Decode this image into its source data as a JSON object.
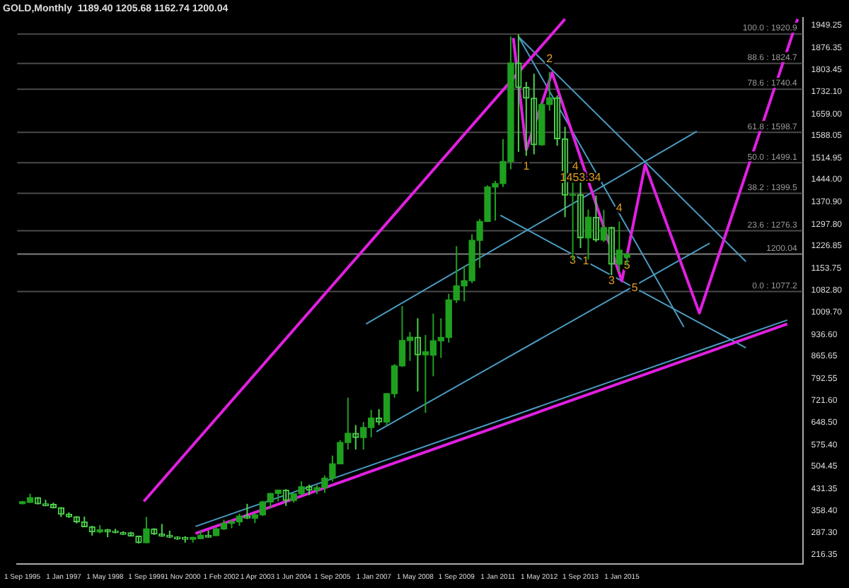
{
  "chart_data": {
    "type": "candlestick",
    "title": "GOLD,Monthly  1189.40 1205.68 1162.74 1200.04",
    "colors": [
      "#1fa01f",
      "#1fa01f",
      "#4cd04c",
      "#4cd04c",
      "#4cd04c",
      "#4cd04c",
      "#4cd04c",
      "#4cd04c",
      "#4cd04c",
      "#4cd04c",
      "#1fa01f",
      "#4cd04c",
      "#4cd04c",
      "#4cd04c",
      "#4cd04c",
      "#4cd04c",
      "#1fa01f",
      "#4cd04c",
      "#4cd04c",
      "#4cd04c",
      "#4cd04c",
      "#4cd04c",
      "#1fa01f",
      "#1fa01f",
      "#4cd04c",
      "#1fa01f",
      "#1fa01f",
      "#1fa01f",
      "#1fa01f",
      "#4cd04c",
      "#1fa01f",
      "#1fa01f",
      "#1fa01f",
      "#1fa01f",
      "#4cd04c",
      "#1fa01f",
      "#1fa01f",
      "#4cd04c",
      "#1fa01f",
      "#1fa01f",
      "#1fa01f",
      "#1fa01f",
      "#1fa01f",
      "#4cd04c",
      "#1fa01f",
      "#1fa01f",
      "#4cd04c",
      "#1fa01f",
      "#1fa01f",
      "#1fa01f",
      "#1fa01f",
      "#4cd04c",
      "#1fa01f",
      "#1fa01f",
      "#1fa01f",
      "#1fa01f",
      "#1fa01f",
      "#1fa01f",
      "#1fa01f",
      "#1fa01f",
      "#1fa01f",
      "#1fa01f",
      "#1fa01f",
      "#1fa01f",
      "#4cd04c",
      "#4cd04c",
      "#4cd04c",
      "#1fa01f",
      "#1fa01f",
      "#4cd04c",
      "#4cd04c",
      "#1fa01f",
      "#4cd04c",
      "#1fa01f",
      "#4cd04c",
      "#1fa01f",
      "#4cd04c",
      "#1fa01f",
      "#1fa01f"
    ],
    "x": [
      "1995-09",
      "1995-12",
      "1996-03",
      "1996-06",
      "1996-09",
      "1996-12",
      "1997-03",
      "1997-06",
      "1997-09",
      "1997-12",
      "1998-03",
      "1998-06",
      "1998-09",
      "1998-12",
      "1999-03",
      "1999-06",
      "1999-09",
      "1999-12",
      "2000-03",
      "2000-06",
      "2000-09",
      "2000-12",
      "2001-03",
      "2001-06",
      "2001-09",
      "2001-12",
      "2002-03",
      "2002-06",
      "2002-09",
      "2002-12",
      "2003-03",
      "2003-06",
      "2003-09",
      "2003-12",
      "2004-03",
      "2004-06",
      "2004-09",
      "2004-12",
      "2005-03",
      "2005-06",
      "2005-09",
      "2005-12",
      "2006-03",
      "2006-06",
      "2006-09",
      "2006-12",
      "2007-03",
      "2007-06",
      "2007-09",
      "2007-12",
      "2008-03",
      "2008-06",
      "2008-09",
      "2008-12",
      "2009-03",
      "2009-06",
      "2009-09",
      "2009-12",
      "2010-03",
      "2010-06",
      "2010-09",
      "2010-12",
      "2011-03",
      "2011-06",
      "2011-09",
      "2011-12",
      "2012-03",
      "2012-06",
      "2012-09",
      "2012-12",
      "2013-03",
      "2013-06",
      "2013-09",
      "2013-12",
      "2014-03",
      "2014-06",
      "2014-09",
      "2014-12",
      "2015-03"
    ],
    "ohlc": [
      [
        383,
        392,
        380,
        389
      ],
      [
        387,
        415,
        385,
        402
      ],
      [
        402,
        404,
        380,
        382
      ],
      [
        382,
        395,
        374,
        376
      ],
      [
        380,
        386,
        367,
        369
      ],
      [
        369,
        371,
        339,
        348
      ],
      [
        348,
        354,
        336,
        340
      ],
      [
        340,
        342,
        318,
        323
      ],
      [
        323,
        340,
        306,
        307
      ],
      [
        307,
        310,
        278,
        290
      ],
      [
        290,
        312,
        285,
        297
      ],
      [
        297,
        300,
        273,
        290
      ],
      [
        293,
        300,
        285,
        288
      ],
      [
        288,
        292,
        280,
        282
      ],
      [
        287,
        290,
        275,
        276
      ],
      [
        276,
        278,
        252,
        255
      ],
      [
        255,
        339,
        253,
        300
      ],
      [
        300,
        302,
        280,
        283
      ],
      [
        283,
        316,
        274,
        276
      ],
      [
        279,
        294,
        270,
        273
      ],
      [
        273,
        276,
        264,
        267
      ],
      [
        272,
        276,
        255,
        266
      ],
      [
        266,
        274,
        255,
        272
      ],
      [
        268,
        295,
        266,
        279
      ],
      [
        279,
        295,
        271,
        273
      ],
      [
        278,
        305,
        276,
        300
      ],
      [
        300,
        330,
        296,
        318
      ],
      [
        318,
        330,
        302,
        323
      ],
      [
        323,
        350,
        310,
        342
      ],
      [
        342,
        382,
        332,
        335
      ],
      [
        335,
        352,
        319,
        346
      ],
      [
        346,
        392,
        342,
        388
      ],
      [
        388,
        417,
        367,
        416
      ],
      [
        416,
        427,
        390,
        427
      ],
      [
        427,
        430,
        375,
        393
      ],
      [
        393,
        415,
        386,
        415
      ],
      [
        415,
        456,
        410,
        438
      ],
      [
        438,
        445,
        411,
        427
      ],
      [
        427,
        443,
        414,
        435
      ],
      [
        435,
        475,
        418,
        466
      ],
      [
        466,
        540,
        456,
        513
      ],
      [
        513,
        590,
        512,
        583
      ],
      [
        583,
        730,
        560,
        613
      ],
      [
        613,
        640,
        560,
        599
      ],
      [
        599,
        650,
        560,
        632
      ],
      [
        632,
        690,
        600,
        663
      ],
      [
        663,
        692,
        640,
        650
      ],
      [
        650,
        745,
        640,
        743
      ],
      [
        743,
        840,
        730,
        834
      ],
      [
        834,
        1030,
        830,
        917
      ],
      [
        917,
        945,
        850,
        928
      ],
      [
        928,
        990,
        750,
        870
      ],
      [
        870,
        935,
        680,
        880
      ],
      [
        869,
        1005,
        800,
        916
      ],
      [
        916,
        990,
        860,
        927
      ],
      [
        927,
        1070,
        910,
        1050
      ],
      [
        1050,
        1226,
        1040,
        1096
      ],
      [
        1096,
        1162,
        1045,
        1113
      ],
      [
        1113,
        1265,
        1105,
        1245
      ],
      [
        1245,
        1315,
        1155,
        1307
      ],
      [
        1307,
        1425,
        1305,
        1420
      ],
      [
        1420,
        1440,
        1310,
        1431
      ],
      [
        1431,
        1577,
        1420,
        1503
      ],
      [
        1503,
        1913,
        1478,
        1826
      ],
      [
        1826,
        1920,
        1535,
        1746
      ],
      [
        1746,
        1764,
        1522,
        1711
      ],
      [
        1711,
        1791,
        1527,
        1558
      ],
      [
        1558,
        1700,
        1555,
        1690
      ],
      [
        1690,
        1796,
        1670,
        1712
      ],
      [
        1712,
        1720,
        1555,
        1578
      ],
      [
        1578,
        1617,
        1321,
        1393
      ],
      [
        1393,
        1434,
        1180,
        1395
      ],
      [
        1395,
        1434,
        1220,
        1253
      ],
      [
        1253,
        1346,
        1182,
        1321
      ],
      [
        1321,
        1392,
        1240,
        1246
      ],
      [
        1246,
        1345,
        1240,
        1287
      ],
      [
        1287,
        1290,
        1131,
        1167
      ],
      [
        1167,
        1307,
        1142,
        1213
      ],
      [
        1189.4,
        1205.68,
        1162.74,
        1200.04
      ]
    ],
    "series": [
      {
        "type": "line",
        "color": "#e020e0",
        "x": [
          "1999-08",
          "2013-03"
        ],
        "values": [
          390,
          1970
        ]
      },
      {
        "type": "line",
        "color": "#e020e0",
        "x": [
          "2001-04",
          "2020-05"
        ],
        "values": [
          285,
          971
        ]
      },
      {
        "type": "line",
        "color": "#e020e0",
        "x": [
          "2011-07",
          "2011-12",
          "2012-10",
          "2015-01",
          "2015-10",
          "2017-07",
          "2020-09"
        ],
        "values": [
          1908,
          1542,
          1794,
          1112,
          1492,
          1007,
          1970
        ]
      },
      {
        "type": "line",
        "color": "#4a9bc0",
        "x": [
          "2011-09",
          "2019-01"
        ],
        "values": [
          1912,
          1176
        ]
      },
      {
        "type": "line",
        "color": "#4a9bc0",
        "x": [
          "2011-09",
          "2017-01"
        ],
        "values": [
          1912,
          961
        ]
      },
      {
        "type": "line",
        "color": "#4a9bc0",
        "x": [
          "2011-02",
          "2019-01"
        ],
        "values": [
          1327,
          893
        ]
      },
      {
        "type": "line",
        "color": "#4a9bc0",
        "x": [
          "2006-10",
          "2017-06"
        ],
        "values": [
          971,
          1602
        ]
      },
      {
        "type": "line",
        "color": "#4a9bc0",
        "x": [
          "2007-02",
          "2017-11"
        ],
        "values": [
          618,
          1236
        ]
      },
      {
        "type": "line",
        "color": "#4a9bc0",
        "x": [
          "2001-04",
          "2020-05"
        ],
        "values": [
          308,
          984
        ]
      }
    ],
    "xlim": [
      "1995-07",
      "2020-11"
    ],
    "xticks": [
      {
        "value": "1995-09",
        "label": "1 Sep 1995"
      },
      {
        "value": "1997-01",
        "label": "1 Jan 1997"
      },
      {
        "value": "1998-05",
        "label": "1 May 1998"
      },
      {
        "value": "1999-09",
        "label": "1 Sep 1999"
      },
      {
        "value": "2000-11",
        "label": "1 Nov 2000"
      },
      {
        "value": "2002-02",
        "label": "1 Feb 2002"
      },
      {
        "value": "2003-04",
        "label": "1 Apr 2003"
      },
      {
        "value": "2004-06",
        "label": "1 Jun 2004"
      },
      {
        "value": "2005-09",
        "label": "1 Sep 2005"
      },
      {
        "value": "2007-01",
        "label": "1 Jan 2007"
      },
      {
        "value": "2008-05",
        "label": "1 May 2008"
      },
      {
        "value": "2009-09",
        "label": "1 Sep 2009"
      },
      {
        "value": "2011-01",
        "label": "1 Jan 2011"
      },
      {
        "value": "2012-05",
        "label": "1 May 2012"
      },
      {
        "value": "2013-09",
        "label": "1 Sep 2013"
      },
      {
        "value": "2015-01",
        "label": "1 Jan 2015"
      }
    ],
    "ylim": [
      185,
      1975
    ],
    "yticks": [
      1949.25,
      1876.35,
      1803.45,
      {
        "value": 1732.1,
        "label": "1732.10"
      },
      {
        "value": 1659,
        "label": "1659.00"
      },
      1588.05,
      1514.95,
      {
        "value": 1444,
        "label": "1444.00"
      },
      {
        "value": 1370.9,
        "label": "1370.90"
      },
      {
        "value": 1297.8,
        "label": "1297.80"
      },
      1226.85,
      1153.75,
      {
        "value": 1082.8,
        "label": "1082.80"
      },
      {
        "value": 1009.7,
        "label": "1009.70"
      },
      {
        "value": 936.6,
        "label": "936.60"
      },
      865.65,
      792.55,
      {
        "value": 721.6,
        "label": "721.60"
      },
      {
        "value": 648.5,
        "label": "648.50"
      },
      {
        "value": 575.4,
        "label": "575.40"
      },
      504.45,
      431.35,
      {
        "value": 358.4,
        "label": "358.40"
      },
      {
        "value": 287.3,
        "label": "287.30"
      },
      216.35
    ],
    "ref_lines": [
      {
        "axis": "y",
        "value": 1920.9,
        "label": "100.0 : 1920.9",
        "color": "#4a4a4a"
      },
      {
        "axis": "y",
        "value": 1824.7,
        "label": "88.6 : 1824.7",
        "color": "#4a4a4a"
      },
      {
        "axis": "y",
        "value": 1740.4,
        "label": "78.6 : 1740.4",
        "color": "#4a4a4a"
      },
      {
        "axis": "y",
        "value": 1598.7,
        "label": "61.8 : 1598.7",
        "color": "#4a4a4a"
      },
      {
        "axis": "y",
        "value": 1499.1,
        "label": "50.0 : 1499.1",
        "color": "#4a4a4a"
      },
      {
        "axis": "y",
        "value": 1399.5,
        "label": "38.2 : 1399.5",
        "color": "#4a4a4a"
      },
      {
        "axis": "y",
        "value": 1276.3,
        "label": "23.6 : 1276.3",
        "color": "#4a4a4a"
      },
      {
        "axis": "y",
        "value": 1077.2,
        "label": "0.0 : 1077.2",
        "color": "#4a4a4a"
      },
      {
        "axis": "y",
        "value": 1200.04,
        "label": "1200.04",
        "color": "#808080"
      }
    ],
    "annotations": [
      {
        "text": "1",
        "x": "2011-12",
        "y": 1487
      },
      {
        "text": "2",
        "x": "2012-09",
        "y": 1839
      },
      {
        "text": "3",
        "x": "2013-06",
        "y": 1180
      },
      {
        "text": "4",
        "x": "2013-07",
        "y": 1487
      },
      {
        "text": "5",
        "x": "2015-06",
        "y": 1089
      },
      {
        "text": "1",
        "x": "2013-11",
        "y": 1176
      },
      {
        "text": "3",
        "x": "2014-09",
        "y": 1112
      },
      {
        "text": "4",
        "x": "2014-12",
        "y": 1350
      },
      {
        "text": "5",
        "x": "2015-03",
        "y": 1162.74
      },
      {
        "text": "1453.34",
        "x": "2013-09",
        "y": 1450
      }
    ],
    "grid": false,
    "legend": false
  }
}
